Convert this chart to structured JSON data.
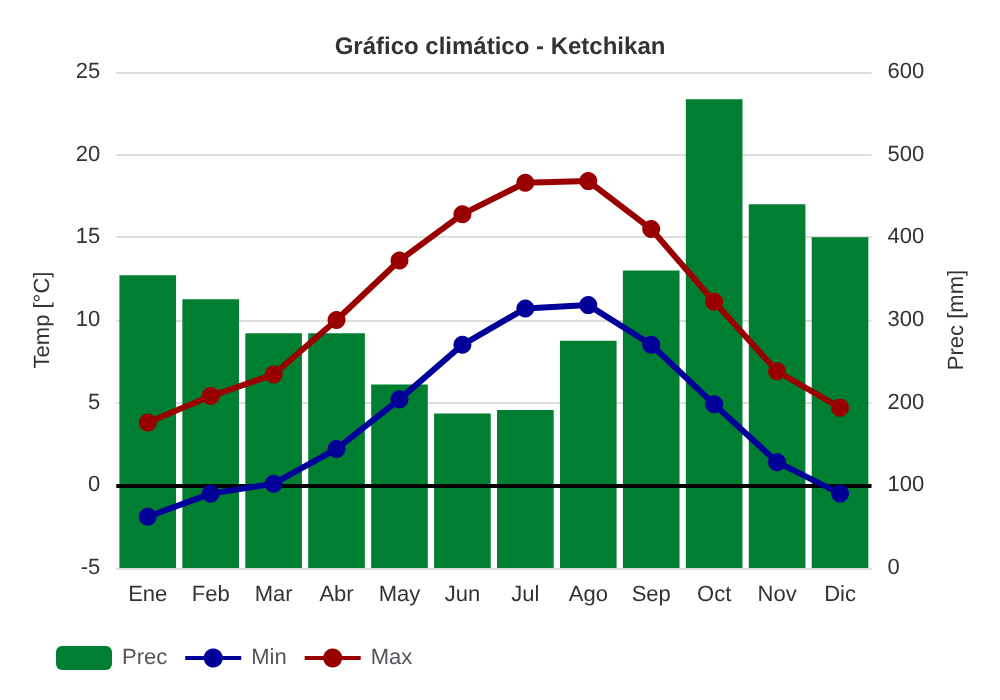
{
  "chart_data": {
    "type": "bar",
    "title": "Gráfico climático - Ketchikan",
    "ylabel": "Temp [°C]",
    "y2label": "Prec [mm]",
    "categories": [
      "Ene",
      "Feb",
      "Mar",
      "Abr",
      "May",
      "Jun",
      "Jul",
      "Ago",
      "Sep",
      "Oct",
      "Nov",
      "Dic"
    ],
    "series": [
      {
        "name": "Prec",
        "axis": "y2",
        "color": "#007f33",
        "values": [
          354,
          325,
          284,
          284,
          222,
          187,
          191,
          275,
          360,
          567,
          440,
          400
        ]
      },
      {
        "name": "Min",
        "type": "line",
        "color": "#000099",
        "values": [
          -1.9,
          -0.5,
          0.1,
          2.2,
          5.2,
          8.5,
          10.7,
          10.9,
          8.5,
          4.9,
          1.4,
          -0.5
        ]
      },
      {
        "name": "Max",
        "type": "line",
        "color": "#990000",
        "values": [
          3.8,
          5.4,
          6.7,
          10.0,
          13.6,
          16.4,
          18.3,
          18.4,
          15.5,
          11.1,
          6.9,
          4.7
        ]
      }
    ],
    "ylim": [
      -5,
      25
    ],
    "yticks": [
      -5,
      0,
      5,
      10,
      15,
      20,
      25
    ],
    "y2lim": [
      0,
      600
    ],
    "y2ticks": [
      0,
      100,
      200,
      300,
      400,
      500,
      600
    ],
    "ref_lines": [
      {
        "axis": "y",
        "value": 0,
        "color": "#000000"
      }
    ],
    "grid": "y",
    "legend": "bottom left",
    "marker": "circle",
    "line_style": "solid"
  }
}
